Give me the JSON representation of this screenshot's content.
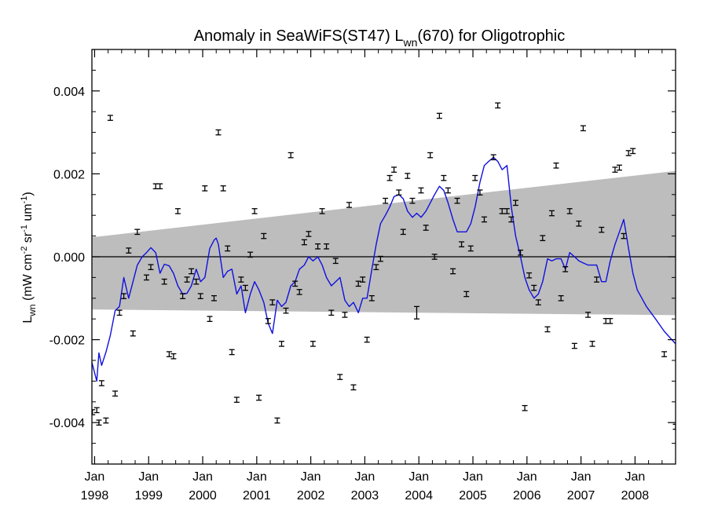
{
  "chart_data": {
    "type": "line",
    "title": {
      "pre": "Anomaly in SeaWiFS(ST47) L",
      "sub": "wn",
      "post": "(670) for Oligotrophic"
    },
    "ylabel": {
      "main": "L",
      "main_sub": "wn",
      "units_open": " (mW cm",
      "sup1": "-2",
      "mid": " sr",
      "sup2": "-1",
      "unit3": " um",
      "sup3": "-1",
      "units_close": ")"
    },
    "xlim": [
      1997.95,
      2008.75
    ],
    "ylim": [
      -0.005,
      0.005
    ],
    "y_ticks": [
      {
        "value": 0.004,
        "label": "0.004"
      },
      {
        "value": 0.002,
        "label": "0.002"
      },
      {
        "value": 0.0,
        "label": "0.000"
      },
      {
        "value": -0.002,
        "label": "-0.002"
      },
      {
        "value": -0.004,
        "label": "-0.004"
      }
    ],
    "x_ticks": [
      {
        "value": 1998,
        "month": "Jan",
        "year": "1998"
      },
      {
        "value": 1999,
        "month": "Jan",
        "year": "1999"
      },
      {
        "value": 2000,
        "month": "Jan",
        "year": "2000"
      },
      {
        "value": 2001,
        "month": "Jan",
        "year": "2001"
      },
      {
        "value": 2002,
        "month": "Jan",
        "year": "2002"
      },
      {
        "value": 2003,
        "month": "Jan",
        "year": "2003"
      },
      {
        "value": 2004,
        "month": "Jan",
        "year": "2004"
      },
      {
        "value": 2005,
        "month": "Jan",
        "year": "2005"
      },
      {
        "value": 2006,
        "month": "Jan",
        "year": "2006"
      },
      {
        "value": 2007,
        "month": "Jan",
        "year": "2007"
      },
      {
        "value": 2008,
        "month": "Jan",
        "year": "2008"
      }
    ],
    "zero_line": 0.0,
    "confidence_band": {
      "color": "#bdbdbd",
      "upper": [
        [
          1997.95,
          0.00047
        ],
        [
          2008.75,
          0.00207
        ]
      ],
      "lower": [
        [
          1997.95,
          -0.00127
        ],
        [
          2008.75,
          -0.00141
        ]
      ]
    },
    "series": [
      {
        "kind": "smoothed",
        "color": "#1010e0",
        "points": [
          [
            1997.95,
            -0.00255
          ],
          [
            1998.04,
            -0.003
          ],
          [
            1998.08,
            -0.00232
          ],
          [
            1998.13,
            -0.00262
          ],
          [
            1998.21,
            -0.0023
          ],
          [
            1998.29,
            -0.0019
          ],
          [
            1998.38,
            -0.0013
          ],
          [
            1998.46,
            -0.0012
          ],
          [
            1998.54,
            -0.0005
          ],
          [
            1998.63,
            -0.001
          ],
          [
            1998.71,
            -0.0006
          ],
          [
            1998.79,
            -0.0002
          ],
          [
            1998.88,
            0.0
          ],
          [
            1998.96,
            0.0001
          ],
          [
            1999.04,
            0.00022
          ],
          [
            1999.13,
            0.0001
          ],
          [
            1999.21,
            -0.0004
          ],
          [
            1999.29,
            -0.00018
          ],
          [
            1999.38,
            -0.00022
          ],
          [
            1999.46,
            -0.0004
          ],
          [
            1999.54,
            -0.0007
          ],
          [
            1999.63,
            -0.0009
          ],
          [
            1999.71,
            -0.00088
          ],
          [
            1999.79,
            -0.0007
          ],
          [
            1999.88,
            -0.0003
          ],
          [
            1999.96,
            -0.0006
          ],
          [
            2000.04,
            -0.0005
          ],
          [
            2000.13,
            0.0002
          ],
          [
            2000.21,
            0.0004
          ],
          [
            2000.25,
            0.00045
          ],
          [
            2000.29,
            0.0003
          ],
          [
            2000.38,
            -0.0005
          ],
          [
            2000.46,
            -0.00035
          ],
          [
            2000.54,
            -0.0003
          ],
          [
            2000.63,
            -0.0009
          ],
          [
            2000.71,
            -0.0007
          ],
          [
            2000.79,
            -0.00135
          ],
          [
            2000.88,
            -0.0009
          ],
          [
            2000.96,
            -0.0006
          ],
          [
            2001.04,
            -0.0008
          ],
          [
            2001.13,
            -0.0011
          ],
          [
            2001.21,
            -0.0016
          ],
          [
            2001.29,
            -0.00185
          ],
          [
            2001.38,
            -0.00105
          ],
          [
            2001.46,
            -0.0012
          ],
          [
            2001.54,
            -0.0011
          ],
          [
            2001.63,
            -0.0007
          ],
          [
            2001.71,
            -0.0006
          ],
          [
            2001.79,
            -0.0003
          ],
          [
            2001.88,
            -0.0002
          ],
          [
            2001.96,
            0.0
          ],
          [
            2002.04,
            -0.0001
          ],
          [
            2002.13,
            0.0
          ],
          [
            2002.21,
            -0.0002
          ],
          [
            2002.29,
            -0.0005
          ],
          [
            2002.38,
            -0.0007
          ],
          [
            2002.46,
            -0.0006
          ],
          [
            2002.54,
            -0.0005
          ],
          [
            2002.63,
            -0.00105
          ],
          [
            2002.71,
            -0.0012
          ],
          [
            2002.79,
            -0.0011
          ],
          [
            2002.88,
            -0.00135
          ],
          [
            2002.96,
            -0.001
          ],
          [
            2003.04,
            -0.001
          ],
          [
            2003.13,
            -0.0003
          ],
          [
            2003.21,
            0.0003
          ],
          [
            2003.29,
            0.0008
          ],
          [
            2003.38,
            0.001
          ],
          [
            2003.46,
            0.0012
          ],
          [
            2003.54,
            0.00145
          ],
          [
            2003.63,
            0.0015
          ],
          [
            2003.71,
            0.0014
          ],
          [
            2003.79,
            0.0011
          ],
          [
            2003.88,
            0.00095
          ],
          [
            2003.96,
            0.00105
          ],
          [
            2004.04,
            0.00095
          ],
          [
            2004.13,
            0.0011
          ],
          [
            2004.21,
            0.0013
          ],
          [
            2004.29,
            0.0015
          ],
          [
            2004.38,
            0.0017
          ],
          [
            2004.46,
            0.0016
          ],
          [
            2004.54,
            0.0013
          ],
          [
            2004.63,
            0.0009
          ],
          [
            2004.71,
            0.0006
          ],
          [
            2004.79,
            0.0006
          ],
          [
            2004.88,
            0.0006
          ],
          [
            2004.96,
            0.0008
          ],
          [
            2005.04,
            0.0012
          ],
          [
            2005.13,
            0.0018
          ],
          [
            2005.21,
            0.0022
          ],
          [
            2005.29,
            0.0023
          ],
          [
            2005.38,
            0.0024
          ],
          [
            2005.46,
            0.0023
          ],
          [
            2005.54,
            0.0021
          ],
          [
            2005.63,
            0.0022
          ],
          [
            2005.71,
            0.0012
          ],
          [
            2005.79,
            0.0005
          ],
          [
            2005.88,
            0.0
          ],
          [
            2005.96,
            -0.0005
          ],
          [
            2006.04,
            -0.0008
          ],
          [
            2006.13,
            -0.001
          ],
          [
            2006.21,
            -0.0009
          ],
          [
            2006.29,
            -0.0006
          ],
          [
            2006.38,
            -5e-05
          ],
          [
            2006.46,
            -0.0001
          ],
          [
            2006.54,
            -5e-05
          ],
          [
            2006.63,
            -5e-05
          ],
          [
            2006.71,
            -0.0003
          ],
          [
            2006.79,
            0.0001
          ],
          [
            2006.88,
            0.0
          ],
          [
            2006.96,
            -0.0001
          ],
          [
            2007.04,
            -0.00015
          ],
          [
            2007.13,
            -0.0002
          ],
          [
            2007.21,
            -0.0002
          ],
          [
            2007.29,
            -0.0002
          ],
          [
            2007.38,
            -0.0006
          ],
          [
            2007.46,
            -0.0006
          ],
          [
            2007.54,
            -0.0001
          ],
          [
            2007.63,
            0.0003
          ],
          [
            2007.71,
            0.0006
          ],
          [
            2007.79,
            0.0009
          ],
          [
            2007.83,
            0.0006
          ],
          [
            2007.88,
            0.0002
          ],
          [
            2007.96,
            -0.0004
          ],
          [
            2008.04,
            -0.0008
          ],
          [
            2008.21,
            -0.0012
          ],
          [
            2008.38,
            -0.0015
          ],
          [
            2008.54,
            -0.0018
          ],
          [
            2008.75,
            -0.0021
          ]
        ]
      },
      {
        "kind": "monthly-points-with-error-bars",
        "color": "#000000",
        "error": 6e-05,
        "points": [
          [
            1997.96,
            -0.00375
          ],
          [
            1998.04,
            -0.0037
          ],
          [
            1998.08,
            -0.004
          ],
          [
            1998.13,
            -0.00305
          ],
          [
            1998.21,
            -0.00395
          ],
          [
            1998.29,
            0.00335
          ],
          [
            1998.38,
            -0.0033
          ],
          [
            1998.46,
            -0.00135
          ],
          [
            1998.54,
            -0.00095
          ],
          [
            1998.63,
            0.00015
          ],
          [
            1998.71,
            -0.00185
          ],
          [
            1998.79,
            0.0006
          ],
          [
            1998.96,
            -0.0005
          ],
          [
            1999.04,
            -0.00025
          ],
          [
            1999.13,
            0.0017
          ],
          [
            1999.21,
            0.0017
          ],
          [
            1999.29,
            -0.0006
          ],
          [
            1999.38,
            -0.00235
          ],
          [
            1999.46,
            -0.0024
          ],
          [
            1999.54,
            0.0011
          ],
          [
            1999.63,
            -0.00095
          ],
          [
            1999.71,
            -0.00055
          ],
          [
            1999.79,
            -0.00035
          ],
          [
            1999.88,
            -0.0006
          ],
          [
            1999.96,
            -0.00095
          ],
          [
            2000.04,
            0.00165
          ],
          [
            2000.13,
            -0.0015
          ],
          [
            2000.21,
            -0.001
          ],
          [
            2000.29,
            0.003
          ],
          [
            2000.38,
            0.00165
          ],
          [
            2000.46,
            0.0002
          ],
          [
            2000.54,
            -0.0023
          ],
          [
            2000.63,
            -0.00345
          ],
          [
            2000.71,
            -0.00055
          ],
          [
            2000.79,
            -0.00075
          ],
          [
            2000.88,
            5e-05
          ],
          [
            2000.96,
            0.0011
          ],
          [
            2001.04,
            -0.0034
          ],
          [
            2001.13,
            0.0005
          ],
          [
            2001.21,
            -0.00155
          ],
          [
            2001.29,
            -0.0011
          ],
          [
            2001.38,
            -0.00395
          ],
          [
            2001.46,
            -0.0021
          ],
          [
            2001.54,
            -0.0013
          ],
          [
            2001.63,
            0.00245
          ],
          [
            2001.71,
            -0.00065
          ],
          [
            2001.79,
            -0.00085
          ],
          [
            2001.88,
            0.00035
          ],
          [
            2001.96,
            0.00055
          ],
          [
            2002.04,
            -0.0021
          ],
          [
            2002.13,
            0.00025
          ],
          [
            2002.21,
            0.0011
          ],
          [
            2002.29,
            0.00025
          ],
          [
            2002.38,
            -0.00135
          ],
          [
            2002.46,
            -0.0001
          ],
          [
            2002.54,
            -0.0029
          ],
          [
            2002.63,
            -0.0014
          ],
          [
            2002.71,
            0.00125
          ],
          [
            2002.79,
            -0.00315
          ],
          [
            2002.88,
            -0.00065
          ],
          [
            2002.96,
            -0.00055
          ],
          [
            2003.04,
            -0.002
          ],
          [
            2003.13,
            -0.001
          ],
          [
            2003.21,
            -0.00025
          ],
          [
            2003.29,
            -5e-05
          ],
          [
            2003.38,
            0.00135
          ],
          [
            2003.46,
            0.0019
          ],
          [
            2003.54,
            0.0021
          ],
          [
            2003.63,
            0.00155
          ],
          [
            2003.71,
            0.0006
          ],
          [
            2003.79,
            0.00195
          ],
          [
            2003.88,
            0.00135
          ],
          [
            2003.96,
            -0.00135
          ],
          [
            2004.04,
            0.0016
          ],
          [
            2004.13,
            0.0007
          ],
          [
            2004.21,
            0.00245
          ],
          [
            2004.29,
            0.0
          ],
          [
            2004.38,
            0.0034
          ],
          [
            2004.46,
            0.0019
          ],
          [
            2004.54,
            0.0016
          ],
          [
            2004.63,
            -0.00035
          ],
          [
            2004.71,
            0.00135
          ],
          [
            2004.79,
            0.0003
          ],
          [
            2004.88,
            -0.0009
          ],
          [
            2004.96,
            0.0002
          ],
          [
            2005.04,
            0.0019
          ],
          [
            2005.13,
            0.00155
          ],
          [
            2005.21,
            0.0009
          ],
          [
            2005.38,
            0.0024
          ],
          [
            2005.46,
            0.00365
          ],
          [
            2005.54,
            0.0011
          ],
          [
            2005.63,
            0.0011
          ],
          [
            2005.71,
            0.0009
          ],
          [
            2005.79,
            0.0013
          ],
          [
            2005.88,
            0.0001
          ],
          [
            2005.96,
            -0.00365
          ],
          [
            2006.04,
            -0.00045
          ],
          [
            2006.13,
            -0.00075
          ],
          [
            2006.21,
            -0.0011
          ],
          [
            2006.29,
            0.00045
          ],
          [
            2006.38,
            -0.00175
          ],
          [
            2006.46,
            0.00105
          ],
          [
            2006.54,
            0.0022
          ],
          [
            2006.63,
            -0.001
          ],
          [
            2006.71,
            -0.0003
          ],
          [
            2006.79,
            0.0011
          ],
          [
            2006.88,
            -0.00215
          ],
          [
            2006.96,
            0.0008
          ],
          [
            2007.04,
            0.0031
          ],
          [
            2007.13,
            -0.0014
          ],
          [
            2007.21,
            -0.0021
          ],
          [
            2007.29,
            -0.00055
          ],
          [
            2007.38,
            0.00065
          ],
          [
            2007.46,
            -0.00155
          ],
          [
            2007.54,
            -0.00155
          ],
          [
            2007.63,
            0.0021
          ],
          [
            2007.71,
            0.00215
          ],
          [
            2007.79,
            0.0005
          ],
          [
            2007.88,
            0.0025
          ],
          [
            2007.96,
            0.00255
          ],
          [
            2008.54,
            -0.00235
          ],
          [
            2008.75,
            -0.0041
          ]
        ]
      }
    ],
    "outlier_error": {
      "x": 2003.96,
      "error": 0.00015
    },
    "grid": false,
    "legend": "none"
  }
}
